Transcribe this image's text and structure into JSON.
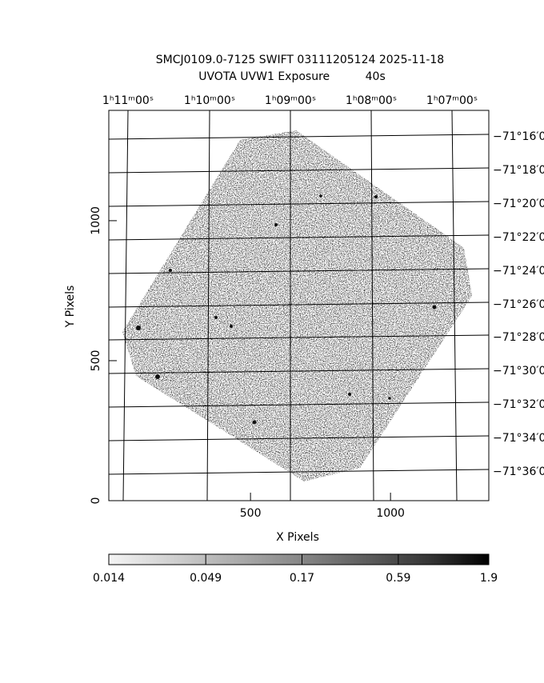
{
  "chart_data": {
    "type": "image",
    "title": "SMCJ0109.0-7125 SWIFT 03111205124 2025-11-18",
    "subtitle": "UVOTA UVW1 Exposure          40s",
    "x_label": "X Pixels",
    "y_label": "Y Pixels",
    "xlim": [
      -6,
      1351
    ],
    "ylim": [
      0,
      1394
    ],
    "xticks": [
      500,
      1000
    ],
    "yticks": [
      0,
      500,
      1000
    ],
    "ra_labels": [
      "1ʰ11ᵐ00ˢ",
      "1ʰ10ᵐ00ˢ",
      "1ʰ09ᵐ00ˢ",
      "1ʰ08ᵐ00ˢ",
      "1ʰ07ᵐ00ˢ"
    ],
    "dec_labels": [
      "−71°16′0",
      "−71°18′0",
      "−71°20′0",
      "−71°22′0",
      "−71°24′0",
      "−71°26′0",
      "−71°28′0",
      "−71°30′0",
      "−71°32′0",
      "−71°34′0",
      "−71°36′0"
    ],
    "colorbar": {
      "lim": [
        0.014,
        1.9
      ],
      "log": true,
      "ticks": [
        0.014,
        0.049,
        0.17,
        0.59,
        1.9
      ]
    }
  }
}
